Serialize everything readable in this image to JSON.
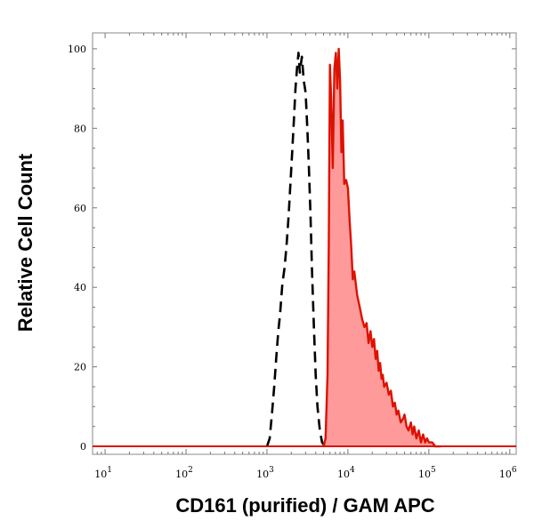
{
  "chart_data": {
    "type": "area",
    "xlabel": "CD161 (purified) / GAM APC",
    "ylabel": "Relative Cell Count",
    "x_scale": "log",
    "xlim": [
      7,
      1200000
    ],
    "ylim": [
      -2,
      104
    ],
    "x_ticks": [
      {
        "value": 10,
        "base": "10",
        "exp": "1"
      },
      {
        "value": 100,
        "base": "10",
        "exp": "2"
      },
      {
        "value": 1000,
        "base": "10",
        "exp": "3"
      },
      {
        "value": 10000,
        "base": "10",
        "exp": "4"
      },
      {
        "value": 100000,
        "base": "10",
        "exp": "5"
      },
      {
        "value": 1000000,
        "base": "10",
        "exp": "6"
      }
    ],
    "y_ticks": [
      {
        "value": 0,
        "label": "0"
      },
      {
        "value": 20,
        "label": "20"
      },
      {
        "value": 40,
        "label": "40"
      },
      {
        "value": 60,
        "label": "60"
      },
      {
        "value": 80,
        "label": "80"
      },
      {
        "value": 100,
        "label": "100"
      }
    ],
    "grid": false,
    "series": [
      {
        "style": "dashed",
        "color": "#000000",
        "fill": "none",
        "x": [
          1000,
          1080,
          1150,
          1230,
          1300,
          1380,
          1450,
          1550,
          1650,
          1750,
          1850,
          1950,
          2050,
          2150,
          2250,
          2350,
          2450,
          2550,
          2700,
          2850,
          3000,
          3150,
          3300,
          3450,
          3600,
          3800,
          4000,
          4200,
          4500,
          4800,
          5200
        ],
        "y": [
          0,
          2,
          8,
          15,
          22,
          29,
          33,
          41,
          45,
          51,
          58,
          66,
          74,
          82,
          90,
          95,
          99,
          94,
          98,
          92,
          89,
          80,
          70,
          58,
          44,
          30,
          18,
          10,
          4,
          1,
          0
        ]
      },
      {
        "style": "solid",
        "color": "#dd1100",
        "fill": "#ff9a9a",
        "x": [
          5000,
          5300,
          5600,
          5800,
          6000,
          6200,
          6500,
          6800,
          7100,
          7400,
          7700,
          8000,
          8300,
          8600,
          9000,
          9500,
          10000,
          10500,
          11000,
          11500,
          12000,
          13000,
          14000,
          15000,
          16000,
          17000,
          18000,
          19000,
          20000,
          21000,
          22000,
          23000,
          24000,
          25000,
          26000,
          27000,
          28000,
          30000,
          32000,
          34000,
          36000,
          38000,
          40000,
          42000,
          45000,
          48000,
          50000,
          53000,
          56000,
          60000,
          63000,
          66000,
          70000,
          75000,
          80000,
          85000,
          90000,
          95000,
          100000,
          110000,
          120000,
          130000,
          140000
        ],
        "y": [
          0,
          2,
          18,
          50,
          96,
          88,
          70,
          95,
          99,
          90,
          100,
          92,
          74,
          82,
          66,
          67,
          65,
          57,
          50,
          42,
          44,
          38,
          35,
          32,
          30,
          31,
          26,
          29,
          25,
          27,
          22,
          24,
          19,
          21,
          17,
          18,
          15,
          16,
          13,
          14,
          10,
          11,
          8,
          9,
          6,
          7,
          8,
          5,
          4,
          6,
          3,
          5,
          2,
          4,
          1,
          3,
          1,
          2,
          1,
          1,
          0,
          0,
          0
        ]
      }
    ]
  }
}
